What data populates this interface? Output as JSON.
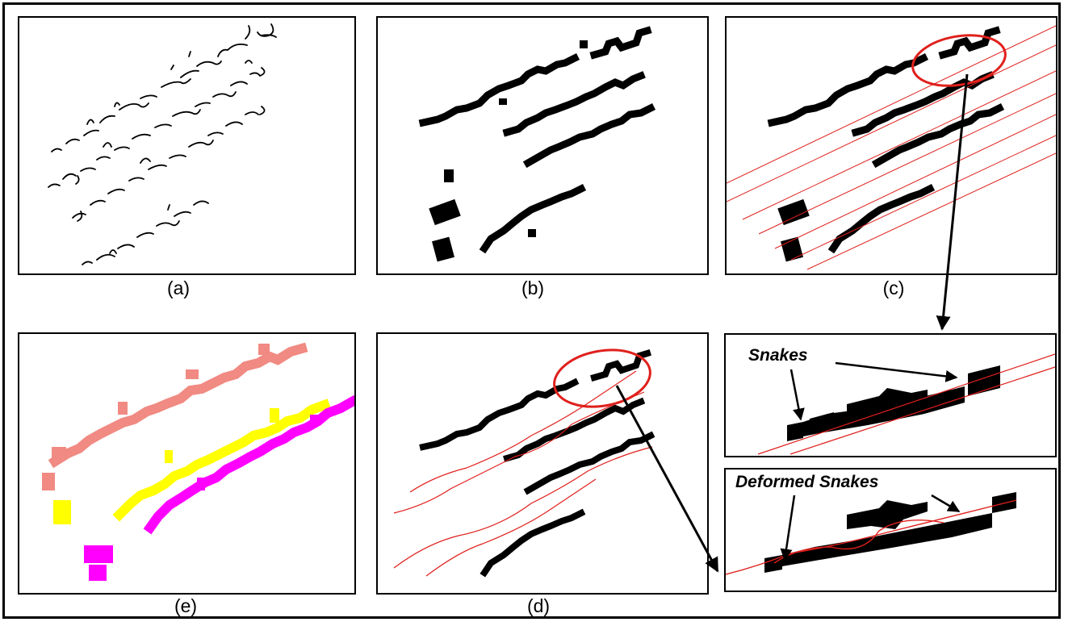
{
  "captions": {
    "a": "(a)",
    "b": "(b)",
    "c": "(c)",
    "d": "(d)",
    "e": "(e)"
  },
  "callouts": {
    "snakes": "Snakes",
    "deformed_snakes": "Deformed Snakes"
  },
  "colors": {
    "ink": "#000000",
    "snake_line": "#e0201c",
    "highlight_ellipse": "#e0201c",
    "line1": "#f08a82",
    "line2": "#ffff00",
    "line3": "#ff00ff"
  }
}
